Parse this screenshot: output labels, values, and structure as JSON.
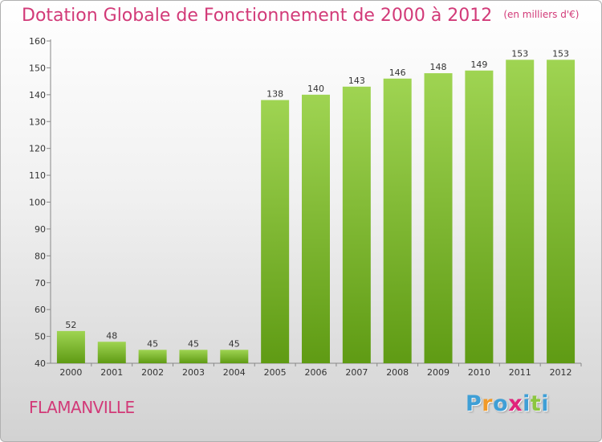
{
  "title": "Dotation Globale de Fonctionnement de 2000 à 2012",
  "subtitle": "(en milliers d'€)",
  "commune": "FLAMANVILLE",
  "logo": {
    "letters": [
      "P",
      "r",
      "o",
      "x",
      "i",
      "t",
      "i"
    ],
    "colors": [
      "#3f9fd6",
      "#f19a28",
      "#3f9fd6",
      "#e0247b",
      "#3f9fd6",
      "#8cc63f",
      "#3f9fd6"
    ]
  },
  "colors": {
    "title": "#d23a78",
    "bar_light": "#9fd452",
    "bar_dark": "#5f9b14",
    "axis": "#888888"
  },
  "chart_data": {
    "type": "bar",
    "categories": [
      "2000",
      "2001",
      "2002",
      "2003",
      "2004",
      "2005",
      "2006",
      "2007",
      "2008",
      "2009",
      "2010",
      "2011",
      "2012"
    ],
    "values": [
      52,
      48,
      45,
      45,
      45,
      138,
      140,
      143,
      146,
      148,
      149,
      153,
      153
    ],
    "ylim": [
      40,
      160
    ],
    "yticks": [
      40,
      50,
      60,
      70,
      80,
      90,
      100,
      110,
      120,
      130,
      140,
      150,
      160
    ],
    "grid": false,
    "data_labels": true
  }
}
